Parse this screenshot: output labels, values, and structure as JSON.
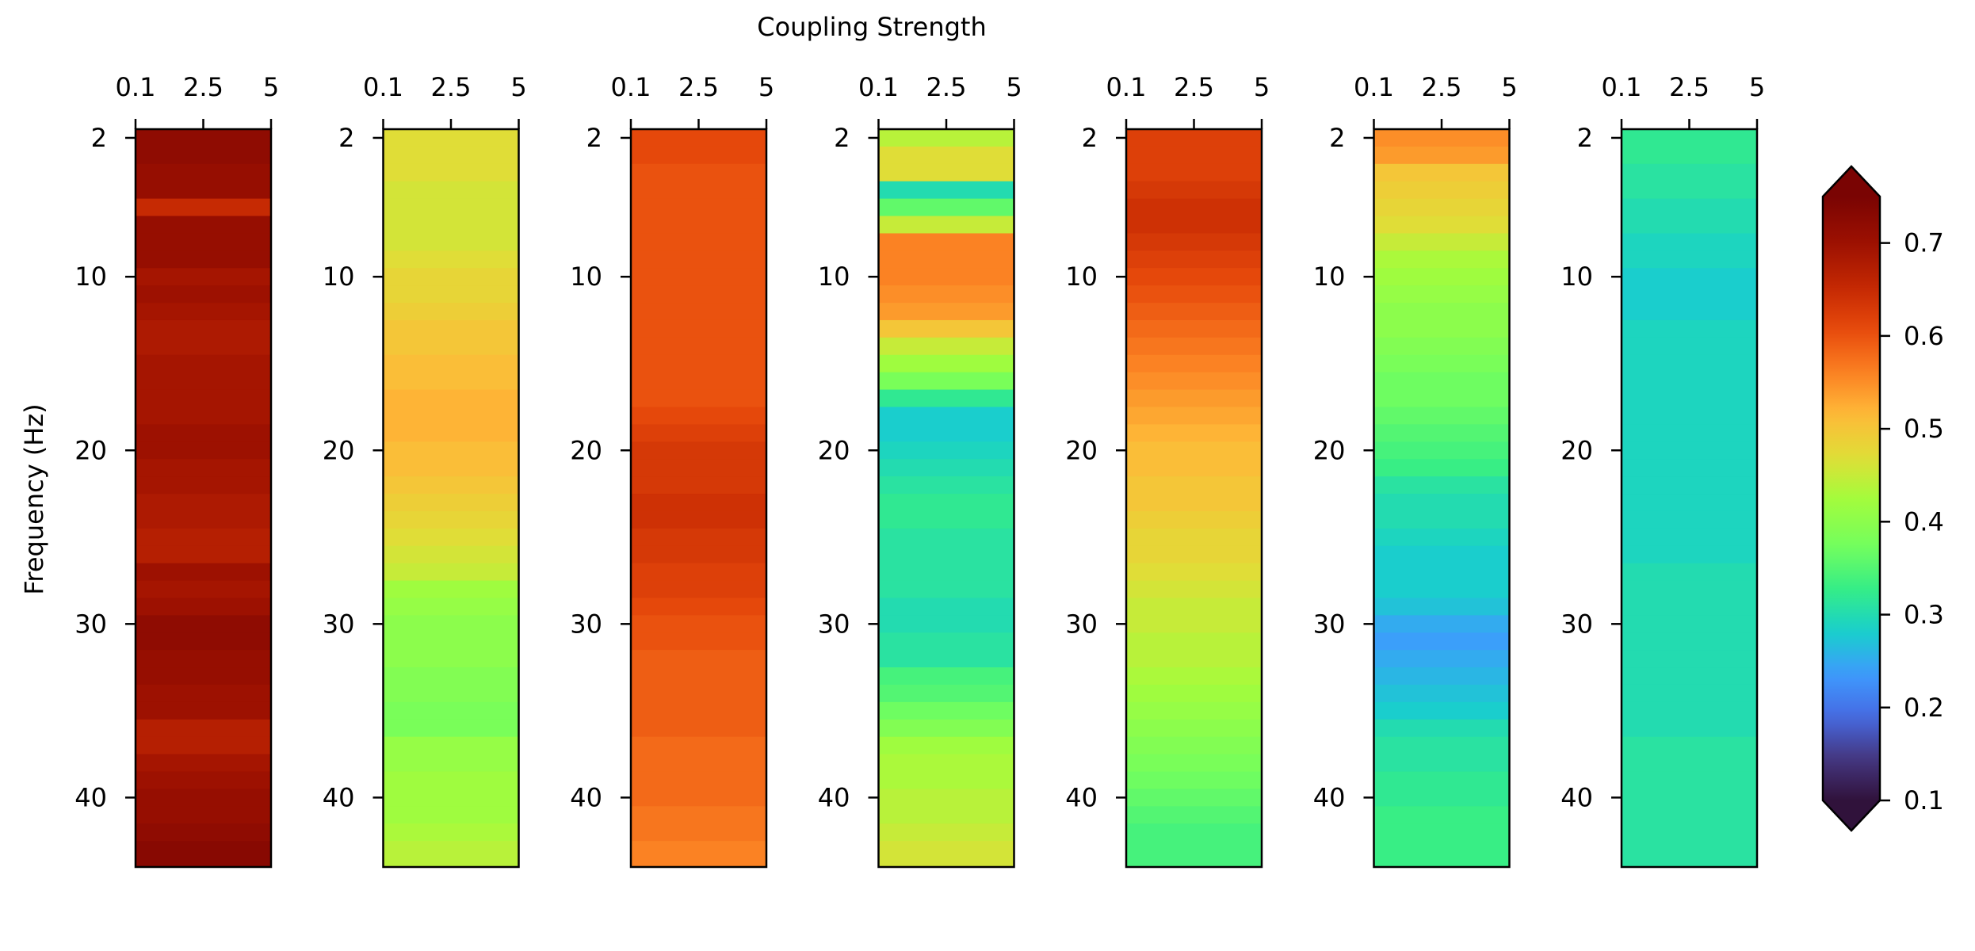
{
  "chart_data": {
    "type": "heatmap",
    "title": "",
    "xlabel": "Coupling Strength",
    "ylabel": "Frequency (Hz)",
    "x_ticks": [
      "0.1",
      "2.5",
      "5"
    ],
    "y_ticks": [
      2,
      10,
      20,
      30,
      40
    ],
    "ylim": [
      44,
      1.5
    ],
    "xlim": [
      0.1,
      5
    ],
    "grid": false,
    "colormap": "turbo",
    "color_range": [
      0.1,
      0.75
    ],
    "colorbar": {
      "position": "right",
      "ticks": [
        "0.1",
        "0.2",
        "0.3",
        "0.4",
        "0.5",
        "0.6",
        "0.7"
      ],
      "extend": "both"
    },
    "rows_frequency_hz": [
      2,
      3,
      4,
      5,
      6,
      7,
      8,
      9,
      10,
      11,
      12,
      13,
      14,
      15,
      16,
      17,
      18,
      19,
      20,
      21,
      22,
      23,
      24,
      25,
      26,
      27,
      28,
      29,
      30,
      31,
      32,
      33,
      34,
      35,
      36,
      37,
      38,
      39,
      40,
      41,
      42,
      43
    ],
    "panels": [
      {
        "values": [
          0.72,
          0.72,
          0.71,
          0.71,
          0.65,
          0.71,
          0.71,
          0.71,
          0.69,
          0.7,
          0.69,
          0.68,
          0.68,
          0.69,
          0.69,
          0.69,
          0.69,
          0.7,
          0.7,
          0.69,
          0.69,
          0.68,
          0.68,
          0.67,
          0.67,
          0.7,
          0.69,
          0.7,
          0.72,
          0.72,
          0.71,
          0.71,
          0.7,
          0.7,
          0.67,
          0.67,
          0.69,
          0.7,
          0.71,
          0.71,
          0.72,
          0.73
        ]
      },
      {
        "values": [
          0.47,
          0.47,
          0.47,
          0.46,
          0.46,
          0.46,
          0.46,
          0.47,
          0.48,
          0.48,
          0.49,
          0.5,
          0.5,
          0.51,
          0.51,
          0.52,
          0.52,
          0.52,
          0.51,
          0.51,
          0.5,
          0.49,
          0.48,
          0.47,
          0.46,
          0.45,
          0.42,
          0.41,
          0.4,
          0.4,
          0.4,
          0.39,
          0.39,
          0.38,
          0.38,
          0.41,
          0.41,
          0.42,
          0.42,
          0.42,
          0.43,
          0.44
        ]
      },
      {
        "values": [
          0.61,
          0.61,
          0.6,
          0.6,
          0.6,
          0.6,
          0.6,
          0.6,
          0.6,
          0.6,
          0.6,
          0.6,
          0.6,
          0.6,
          0.6,
          0.6,
          0.61,
          0.62,
          0.63,
          0.63,
          0.63,
          0.64,
          0.64,
          0.63,
          0.63,
          0.62,
          0.62,
          0.61,
          0.6,
          0.6,
          0.59,
          0.59,
          0.59,
          0.59,
          0.59,
          0.58,
          0.58,
          0.58,
          0.58,
          0.57,
          0.57,
          0.56
        ]
      },
      {
        "values": [
          0.44,
          0.47,
          0.47,
          0.3,
          0.36,
          0.45,
          0.56,
          0.56,
          0.56,
          0.55,
          0.54,
          0.5,
          0.45,
          0.42,
          0.38,
          0.32,
          0.28,
          0.28,
          0.29,
          0.3,
          0.31,
          0.32,
          0.32,
          0.31,
          0.31,
          0.31,
          0.31,
          0.3,
          0.3,
          0.31,
          0.31,
          0.34,
          0.35,
          0.37,
          0.39,
          0.42,
          0.43,
          0.43,
          0.44,
          0.44,
          0.45,
          0.46
        ]
      },
      {
        "values": [
          0.62,
          0.62,
          0.62,
          0.63,
          0.64,
          0.64,
          0.63,
          0.62,
          0.61,
          0.6,
          0.59,
          0.58,
          0.57,
          0.56,
          0.55,
          0.54,
          0.53,
          0.52,
          0.51,
          0.51,
          0.5,
          0.5,
          0.49,
          0.48,
          0.48,
          0.47,
          0.46,
          0.45,
          0.45,
          0.44,
          0.44,
          0.43,
          0.42,
          0.41,
          0.4,
          0.39,
          0.38,
          0.37,
          0.36,
          0.35,
          0.34,
          0.34
        ]
      },
      {
        "values": [
          0.55,
          0.54,
          0.5,
          0.49,
          0.48,
          0.47,
          0.45,
          0.43,
          0.42,
          0.41,
          0.4,
          0.4,
          0.39,
          0.38,
          0.37,
          0.37,
          0.36,
          0.35,
          0.34,
          0.33,
          0.31,
          0.3,
          0.3,
          0.29,
          0.28,
          0.28,
          0.28,
          0.27,
          0.25,
          0.24,
          0.25,
          0.26,
          0.27,
          0.28,
          0.3,
          0.31,
          0.31,
          0.32,
          0.32,
          0.33,
          0.33,
          0.33
        ]
      },
      {
        "values": [
          0.32,
          0.32,
          0.31,
          0.31,
          0.3,
          0.3,
          0.29,
          0.29,
          0.28,
          0.28,
          0.28,
          0.29,
          0.29,
          0.29,
          0.29,
          0.29,
          0.29,
          0.29,
          0.29,
          0.29,
          0.29,
          0.29,
          0.29,
          0.29,
          0.29,
          0.3,
          0.3,
          0.3,
          0.3,
          0.3,
          0.3,
          0.3,
          0.3,
          0.3,
          0.3,
          0.31,
          0.31,
          0.31,
          0.31,
          0.31,
          0.31,
          0.31
        ]
      }
    ]
  }
}
